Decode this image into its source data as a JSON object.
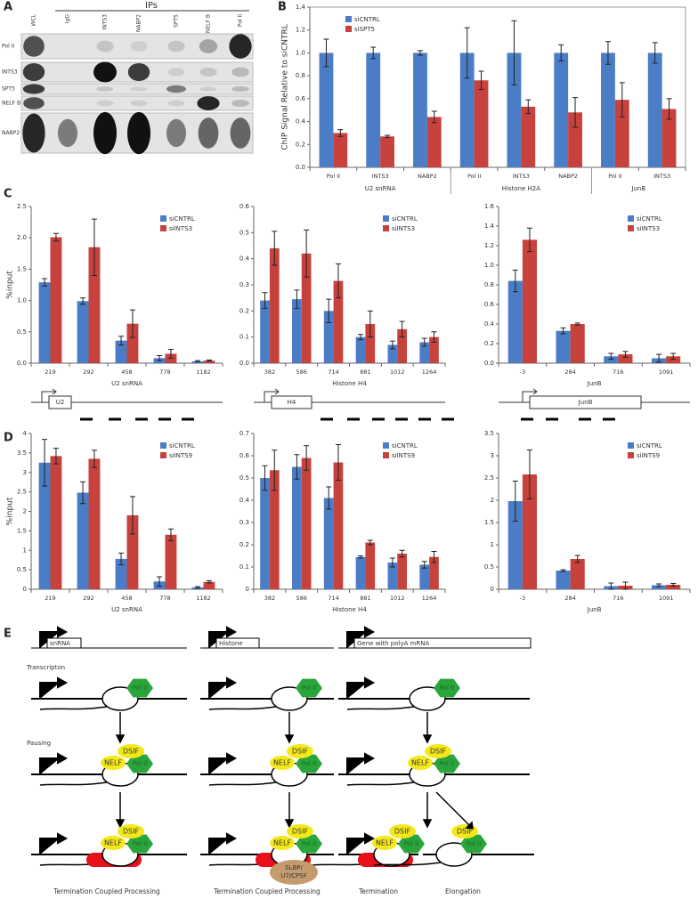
{
  "panel_labels": [
    "A",
    "B",
    "C",
    "D",
    "E"
  ],
  "blot": {
    "header": "IPs",
    "lanes": [
      "WCL",
      "IgG",
      "INTS3",
      "NABP2",
      "SPT5",
      "NELF B",
      "Pol II"
    ],
    "rows": [
      "Pol II",
      "INTS3",
      "SPT5",
      "NELF B",
      "NABP2"
    ]
  },
  "chart_data": [
    {
      "type": "bar",
      "y_label": "ChIP Signal Relative to siCNTRL",
      "categories": [
        "Pol II",
        "INTS3",
        "NABP2",
        "Pol II",
        "INTS3",
        "NABP2",
        "Pol II",
        "INTS3"
      ],
      "group_labels": [
        "U2 snRNA",
        "U2 snRNA",
        "U2 snRNA",
        "Histone H2A",
        "Histone H2A",
        "Histone H2A",
        "JunB",
        "JunB"
      ],
      "ylim": [
        0,
        1.4
      ],
      "yticks": [
        {
          "value": 0,
          "label": "0.0"
        },
        0.2,
        0.4,
        0.6,
        0.8,
        {
          "value": 1,
          "label": "1.0"
        },
        1.2,
        1.4
      ],
      "legend": "upper-left",
      "series": [
        {
          "name": "siCNTRL",
          "color": "#4a7dc6",
          "values": [
            1,
            1,
            1,
            1,
            1,
            1,
            1,
            1
          ],
          "errors": [
            0.12,
            0.05,
            0.02,
            0.22,
            0.28,
            0.07,
            0.1,
            0.09
          ]
        },
        {
          "name": "siSPT5",
          "color": "#c7423c",
          "values": [
            0.3,
            0.27,
            0.44,
            0.76,
            0.53,
            0.48,
            0.59,
            0.51
          ],
          "errors": [
            0.03,
            0.01,
            0.05,
            0.08,
            0.06,
            0.13,
            0.15,
            0.09
          ]
        }
      ]
    },
    {
      "type": "bar",
      "y_label": "%input",
      "x_label": "U2 snRNA",
      "categories": [
        "219",
        "292",
        "458",
        "778",
        "1182"
      ],
      "ylim": [
        0,
        2.5
      ],
      "yticks": [
        {
          "value": 0,
          "label": "0.0"
        },
        0.5,
        {
          "value": 1,
          "label": "1.0"
        },
        1.5,
        {
          "value": 2,
          "label": "2.0"
        },
        2.5
      ],
      "legend": "upper-right",
      "series": [
        {
          "name": "siCNTRL",
          "color": "#4a7dc6",
          "values": [
            1.29,
            0.99,
            0.36,
            0.08,
            0.03
          ],
          "errors": [
            0.06,
            0.05,
            0.07,
            0.04,
            0.01
          ]
        },
        {
          "name": "siINTS3",
          "color": "#c7423c",
          "values": [
            2.01,
            1.85,
            0.63,
            0.15,
            0.04
          ],
          "errors": [
            0.06,
            0.45,
            0.22,
            0.07,
            0.01
          ]
        }
      ]
    },
    {
      "type": "bar",
      "x_label": "Histone H4",
      "categories": [
        "382",
        "586",
        "714",
        "881",
        "1012",
        "1264"
      ],
      "ylim": [
        0,
        0.6
      ],
      "yticks": [
        {
          "value": 0,
          "label": "0.0"
        },
        0.1,
        0.2,
        0.3,
        0.4,
        0.5,
        0.6
      ],
      "legend": "upper-right",
      "series": [
        {
          "name": "siCNTRL",
          "color": "#4a7dc6",
          "values": [
            0.24,
            0.245,
            0.2,
            0.1,
            0.07,
            0.08
          ],
          "errors": [
            0.03,
            0.035,
            0.045,
            0.01,
            0.015,
            0.015
          ]
        },
        {
          "name": "siINTS3",
          "color": "#c7423c",
          "values": [
            0.44,
            0.42,
            0.315,
            0.15,
            0.13,
            0.1
          ],
          "errors": [
            0.065,
            0.09,
            0.065,
            0.05,
            0.03,
            0.02
          ]
        }
      ]
    },
    {
      "type": "bar",
      "x_label": "JunB",
      "categories": [
        "-3",
        "284",
        "716",
        "1091"
      ],
      "ylim": [
        0,
        1.6
      ],
      "yticks": [
        {
          "value": 0,
          "label": "0.0"
        },
        0.2,
        0.4,
        0.6,
        0.8,
        {
          "value": 1,
          "label": "1.0"
        },
        1.2,
        1.4,
        1.6
      ],
      "legend": "upper-right",
      "series": [
        {
          "name": "siCNTRL",
          "color": "#4a7dc6",
          "values": [
            0.84,
            0.33,
            0.07,
            0.05
          ],
          "errors": [
            0.11,
            0.03,
            0.03,
            0.04
          ]
        },
        {
          "name": "siINTS3",
          "color": "#c7423c",
          "values": [
            1.26,
            0.4,
            0.09,
            0.07
          ],
          "errors": [
            0.12,
            0.01,
            0.03,
            0.03
          ]
        }
      ]
    },
    {
      "type": "bar",
      "y_label": "%input",
      "x_label": "U2 snRNA",
      "categories": [
        "219",
        "292",
        "458",
        "778",
        "1182"
      ],
      "ylim": [
        0,
        4
      ],
      "yticks": [
        0,
        0.5,
        1,
        1.5,
        2,
        2.5,
        3,
        3.5,
        4
      ],
      "legend": "upper-right",
      "series": [
        {
          "name": "siCNTRL",
          "color": "#4a7dc6",
          "values": [
            3.25,
            2.48,
            0.78,
            0.2,
            0.05
          ],
          "errors": [
            0.6,
            0.28,
            0.15,
            0.12,
            0.02
          ]
        },
        {
          "name": "siINTS9",
          "color": "#c7423c",
          "values": [
            3.42,
            3.35,
            1.9,
            1.4,
            0.19
          ],
          "errors": [
            0.2,
            0.22,
            0.48,
            0.15,
            0.03
          ]
        }
      ]
    },
    {
      "type": "bar",
      "x_label": "Histone H4",
      "categories": [
        "382",
        "586",
        "714",
        "881",
        "1012",
        "1264"
      ],
      "ylim": [
        0,
        0.7
      ],
      "yticks": [
        0,
        0.1,
        0.2,
        0.3,
        0.4,
        0.5,
        0.6,
        0.7
      ],
      "legend": "upper-right",
      "series": [
        {
          "name": "siCNTRL",
          "color": "#4a7dc6",
          "values": [
            0.5,
            0.55,
            0.41,
            0.145,
            0.12,
            0.11
          ],
          "errors": [
            0.055,
            0.055,
            0.05,
            0.005,
            0.02,
            0.015
          ]
        },
        {
          "name": "siINTS9",
          "color": "#c7423c",
          "values": [
            0.535,
            0.59,
            0.57,
            0.21,
            0.16,
            0.145
          ],
          "errors": [
            0.09,
            0.055,
            0.08,
            0.01,
            0.015,
            0.025
          ]
        }
      ]
    },
    {
      "type": "bar",
      "x_label": "JunB",
      "categories": [
        "-3",
        "284",
        "716",
        "1091"
      ],
      "ylim": [
        0,
        3.5
      ],
      "yticks": [
        0,
        0.5,
        1,
        1.5,
        2,
        2.5,
        3,
        3.5
      ],
      "legend": "upper-right",
      "series": [
        {
          "name": "siCNTRL",
          "color": "#4a7dc6",
          "values": [
            1.98,
            0.42,
            0.07,
            0.09
          ],
          "errors": [
            0.45,
            0.02,
            0.07,
            0.03
          ]
        },
        {
          "name": "siINTS9",
          "color": "#c7423c",
          "values": [
            2.58,
            0.68,
            0.08,
            0.1
          ],
          "errors": [
            0.55,
            0.08,
            0.08,
            0.03
          ]
        }
      ]
    }
  ],
  "gene_maps": [
    "U2",
    "H4",
    "JunB"
  ],
  "model": {
    "genes": [
      "snRNA",
      "Histone",
      "Gene with polyA mRNA"
    ],
    "stages": [
      "Transcripton",
      "Pausing"
    ],
    "pol": "Pol II",
    "dsif": "DSIF",
    "nelf": "NELF",
    "integrator": "Integrator",
    "slbp": [
      "SLBP/",
      "U7/CPSF"
    ],
    "outcomes": [
      "Termination Coupled Processing",
      "Termination Coupled Processing",
      "Termination",
      "Elongation"
    ]
  }
}
